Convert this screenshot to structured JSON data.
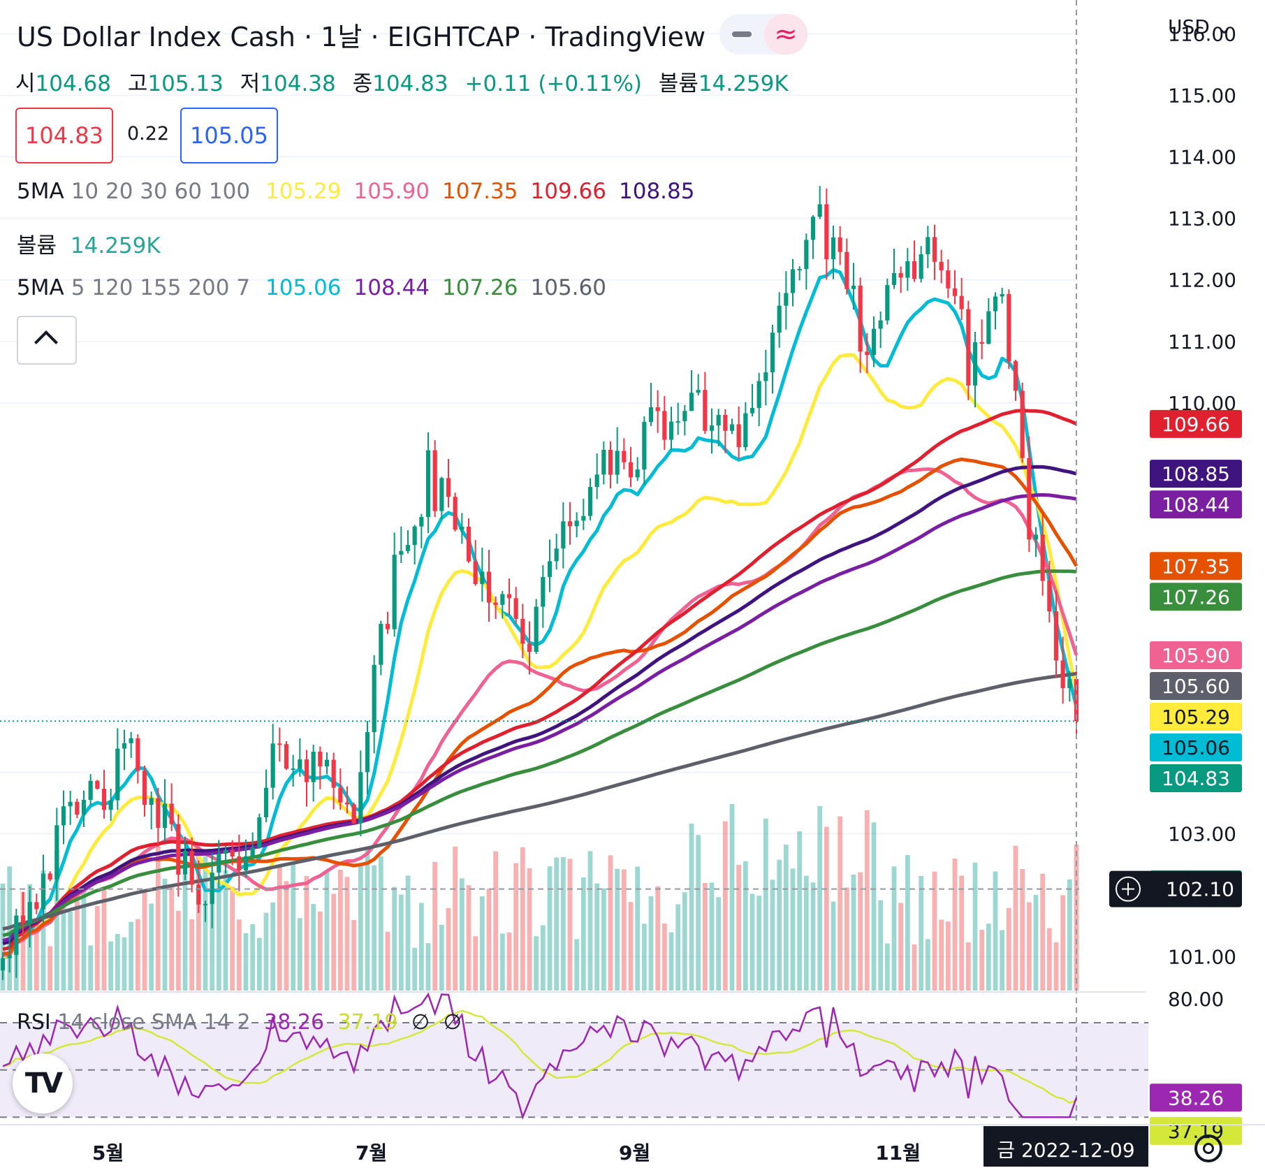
{
  "header": {
    "title": "US Dollar Index Cash · 1날 · EIGHTCAP · TradingView",
    "currency": "USD",
    "currency_chevron_icon": "chevron-down-icon",
    "ohlc": [
      {
        "key": "시",
        "value": "104.68"
      },
      {
        "key": "고",
        "value": "105.13"
      },
      {
        "key": "저",
        "value": "104.38"
      },
      {
        "key": "종",
        "value": "104.83"
      }
    ],
    "change": "+0.11 (+0.11%)",
    "volume_key": "볼륨",
    "volume_value": "14.259K"
  },
  "quote": {
    "sell": "104.83",
    "spread": "0.22",
    "buy": "105.05",
    "sell_color": "#f23645",
    "buy_color": "#2962ff"
  },
  "indicators": {
    "ma1": {
      "name": "5MA",
      "params": "10 20 30 60 100",
      "values": [
        "105.29",
        "105.90",
        "107.35",
        "109.66",
        "108.85"
      ]
    },
    "volume": {
      "name": "볼륨",
      "value": "14.259K"
    },
    "ma2": {
      "name": "5MA",
      "params": "5 120 155 200 7",
      "values": [
        "105.06",
        "108.44",
        "107.26",
        "105.60"
      ]
    },
    "rsi": {
      "name": "RSI",
      "params": "14 close SMA 14 2",
      "values": [
        "38.26",
        "37.19"
      ],
      "na_icons": [
        "∅",
        "∅"
      ]
    }
  },
  "chart_data": {
    "type": "candlestick",
    "y_axis_ticks": [
      "116.00",
      "115.00",
      "114.00",
      "113.00",
      "112.00",
      "111.00",
      "110.00",
      "104.00",
      "103.00",
      "101.00"
    ],
    "y_range": [
      100.45,
      116.55
    ],
    "x_axis_ticks": [
      "5월",
      "7월",
      "9월",
      "11월"
    ],
    "crosshair": {
      "date_label": "금 2022-12-09",
      "price_label": "102.10",
      "price": 102.1,
      "plus_icon": "plus-circle-icon"
    },
    "last_close": 104.83,
    "colors": {
      "up": "#089981",
      "down": "#f23645"
    },
    "ma_lines": [
      {
        "period": 5,
        "color": "#00bcd4",
        "last": 105.06
      },
      {
        "period": 10,
        "color": "#ffeb3b",
        "last": 105.29
      },
      {
        "period": 20,
        "color": "#f06292",
        "last": 105.9
      },
      {
        "period": 30,
        "color": "#e65100",
        "last": 107.35
      },
      {
        "period": 60,
        "color": "#e0202f",
        "last": 109.66
      },
      {
        "period": 100,
        "color": "#3f147e",
        "last": 108.85
      },
      {
        "period": 120,
        "color": "#7b1fa2",
        "last": 108.44
      },
      {
        "period": 155,
        "color": "#388e3c",
        "last": 107.26
      },
      {
        "period": 200,
        "color": "#5d606b",
        "last": 105.6
      }
    ],
    "price_labels": [
      {
        "text": "109.66",
        "bg": "#e0202f",
        "fg": "#ffffff"
      },
      {
        "text": "108.85",
        "bg": "#3f147e",
        "fg": "#ffffff"
      },
      {
        "text": "108.44",
        "bg": "#7b1fa2",
        "fg": "#ffffff"
      },
      {
        "text": "107.35",
        "bg": "#e65100",
        "fg": "#ffffff"
      },
      {
        "text": "107.26",
        "bg": "#388e3c",
        "fg": "#ffffff"
      },
      {
        "text": "105.90",
        "bg": "#f06292",
        "fg": "#ffffff"
      },
      {
        "text": "105.60",
        "bg": "#5d606b",
        "fg": "#ffffff"
      },
      {
        "text": "105.29",
        "bg": "#ffeb3b",
        "fg": "#131722"
      },
      {
        "text": "105.06",
        "bg": "#00bcd4",
        "fg": "#131722"
      },
      {
        "text": "104.83",
        "bg": "#089981",
        "fg": "#ffffff"
      }
    ],
    "volume_label": {
      "text": "14.259K",
      "bg": "#26a69a",
      "fg": "#ffffff"
    },
    "rsi": {
      "ticks": [
        "80.00"
      ],
      "levels": [
        70,
        50,
        30
      ],
      "range": [
        28,
        83
      ],
      "rsi_color": "#9c27b0",
      "sma_color": "#d4e83a",
      "label_values": [
        {
          "text": "38.26",
          "bg": "#9c27b0",
          "fg": "#ffffff"
        },
        {
          "text": "37.19",
          "bg": "#d4e83a",
          "fg": "#131722"
        }
      ]
    }
  }
}
